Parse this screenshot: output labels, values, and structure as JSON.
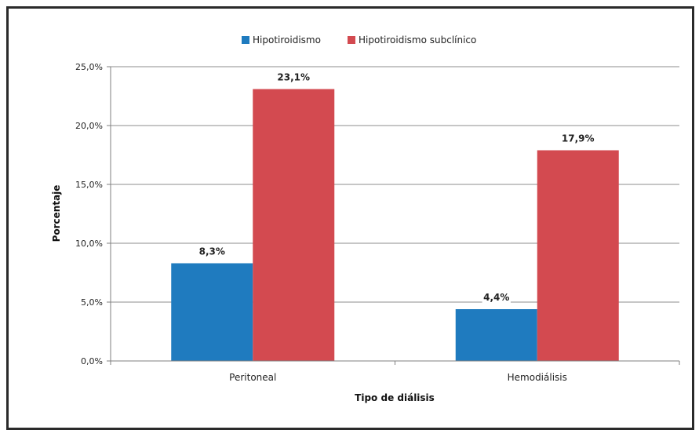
{
  "chart_data": {
    "type": "bar",
    "categories": [
      "Peritoneal",
      "Hemodiálisis"
    ],
    "series": [
      {
        "name": "Hipotiroidismo",
        "values": [
          8.3,
          4.4
        ],
        "labels": [
          "8,3%",
          "4,4%"
        ],
        "color": "#1f7bbf"
      },
      {
        "name": "Hipotiroidismo subclínico",
        "values": [
          23.1,
          17.9
        ],
        "labels": [
          "23,1%",
          "17,9%"
        ],
        "color": "#d34a50"
      }
    ],
    "xlabel": "Tipo de diálisis",
    "ylabel": "Porcentaje",
    "ylim": [
      0,
      25
    ],
    "yticks": [
      0,
      5,
      10,
      15,
      20,
      25
    ],
    "ytick_labels": [
      "0,0%",
      "5,0%",
      "10,0%",
      "15,0%",
      "20,0%",
      "25,0%"
    ],
    "grid": true,
    "legend_position": "top"
  }
}
